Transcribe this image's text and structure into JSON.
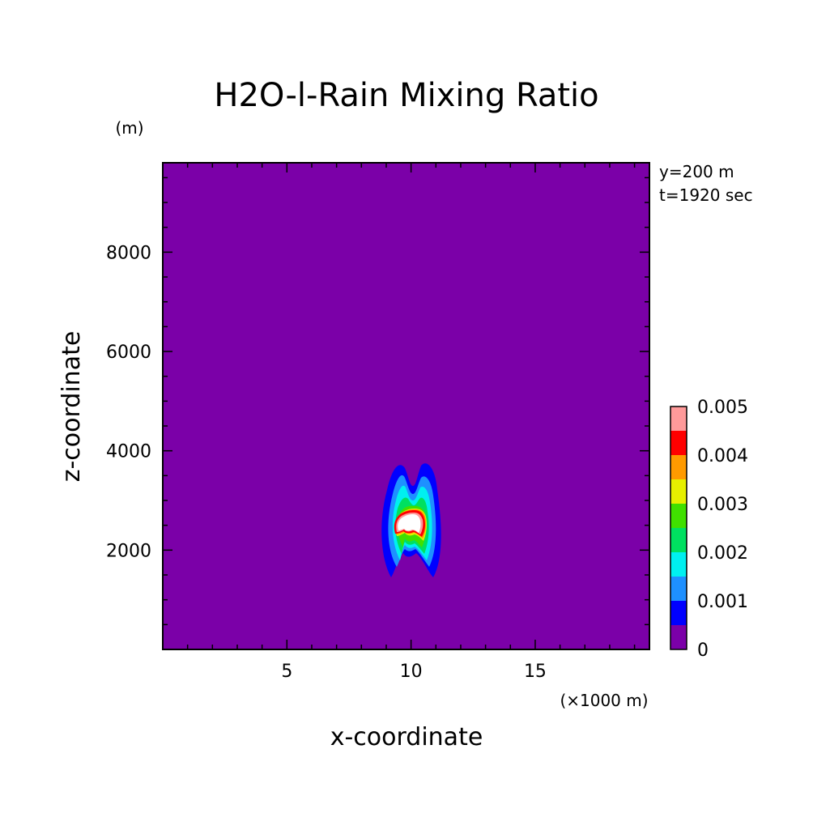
{
  "chart_data": {
    "type": "heatmap",
    "title": "H2O-l-Rain Mixing Ratio",
    "xlabel": "x-coordinate",
    "ylabel": "z-coordinate",
    "x_unit": "(×1000 m)",
    "y_unit": "(m)",
    "annotations": [
      "y=200 m",
      "t=1920 sec"
    ],
    "xlim": [
      0,
      19.6
    ],
    "ylim": [
      0,
      9800
    ],
    "x_ticks": [
      5,
      10,
      15
    ],
    "y_ticks": [
      2000,
      4000,
      6000,
      8000
    ],
    "colorbar": {
      "levels": [
        0,
        0.0005,
        0.001,
        0.0015,
        0.002,
        0.0025,
        0.003,
        0.0035,
        0.004,
        0.0045,
        0.005
      ],
      "colors": [
        "#7b00a8",
        "#0000ff",
        "#1e90ff",
        "#00f0f0",
        "#00e060",
        "#40e000",
        "#e6f000",
        "#ff9a00",
        "#ff0000",
        "#ff9a9a"
      ],
      "tick_labels": [
        "0",
        "0.001",
        "0.002",
        "0.003",
        "0.004",
        "0.005"
      ],
      "tick_values": [
        0,
        0.001,
        0.002,
        0.003,
        0.004,
        0.005
      ]
    },
    "feature": {
      "description_center_x": 10.1,
      "center_z": 2500,
      "max_value": 0.005
    }
  }
}
